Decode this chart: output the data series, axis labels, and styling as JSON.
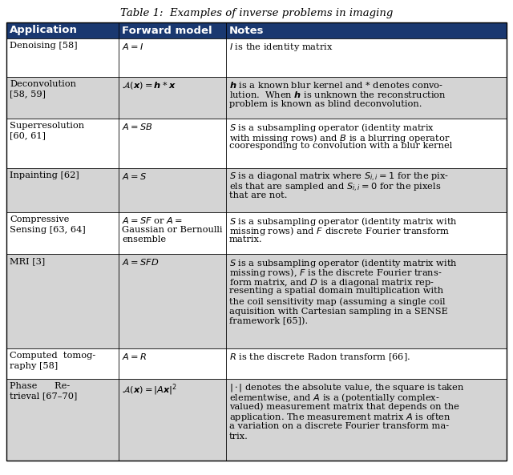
{
  "title": "Table 1:  Examples of inverse problems in imaging",
  "header": [
    "Application",
    "Forward model",
    "Notes"
  ],
  "header_bg": "#1a3870",
  "header_fg": "#ffffff",
  "rows": [
    {
      "app_lines": [
        "Denoising [58]"
      ],
      "model_lines": [
        "$A = I$"
      ],
      "notes_lines": [
        "$I$ is the identity matrix"
      ],
      "bg": "#ffffff"
    },
    {
      "app_lines": [
        "Deconvolution",
        "[58, 59]"
      ],
      "model_lines": [
        "$\\mathcal{A}(\\boldsymbol{x}) = \\boldsymbol{h} * \\boldsymbol{x}$"
      ],
      "notes_lines": [
        "$\\boldsymbol{h}$ is a known blur kernel and $*$ denotes convo-",
        "lution.  When $\\boldsymbol{h}$ is unknown the reconstruction",
        "problem is known as blind deconvolution."
      ],
      "bg": "#d4d4d4"
    },
    {
      "app_lines": [
        "Superresolution",
        "[60, 61]"
      ],
      "model_lines": [
        "$A = SB$"
      ],
      "notes_lines": [
        "$S$ is a subsampling operator (identity matrix",
        "with missing rows) and $B$ is a blurring operator",
        "cooresponding to convolution with a blur kernel"
      ],
      "bg": "#ffffff"
    },
    {
      "app_lines": [
        "Inpainting [62]"
      ],
      "model_lines": [
        "$A = S$"
      ],
      "notes_lines": [
        "$S$ is a diagonal matrix where $S_{i,i} = 1$ for the pix-",
        "els that are sampled and $S_{i,i} = 0$ for the pixels",
        "that are not."
      ],
      "bg": "#d4d4d4"
    },
    {
      "app_lines": [
        "Compressive",
        "Sensing [63, 64]"
      ],
      "model_lines": [
        "$A = SF$ or $A =$",
        "Gaussian or Bernoulli",
        "ensemble"
      ],
      "notes_lines": [
        "$S$ is a subsampling operator (identity matrix with",
        "missing rows) and $F$ discrete Fourier transform",
        "matrix."
      ],
      "bg": "#ffffff"
    },
    {
      "app_lines": [
        "MRI [3]"
      ],
      "model_lines": [
        "$A = SFD$"
      ],
      "notes_lines": [
        "$S$ is a subsampling operator (identity matrix with",
        "missing rows), $F$ is the discrete Fourier trans-",
        "form matrix, and $D$ is a diagonal matrix rep-",
        "resenting a spatial domain multiplication with",
        "the coil sensitivity map (assuming a single coil",
        "aquisition with Cartesian sampling in a SENSE",
        "framework [65])."
      ],
      "bg": "#d4d4d4"
    },
    {
      "app_lines": [
        "Computed  tomog-",
        "raphy [58]"
      ],
      "model_lines": [
        "$A = R$"
      ],
      "notes_lines": [
        "$R$ is the discrete Radon transform [66]."
      ],
      "bg": "#ffffff"
    },
    {
      "app_lines": [
        "Phase      Re-",
        "trieval [67–70]"
      ],
      "model_lines": [
        "$\\mathcal{A}(\\boldsymbol{x}) = |A\\boldsymbol{x}|^2$"
      ],
      "notes_lines": [
        "$|\\cdot|$ denotes the absolute value, the square is taken",
        "elementwise, and $A$ is a (potentially complex-",
        "valued) measurement matrix that depends on the",
        "application. The measurement matrix $A$ is often",
        "a variation on a discrete Fourier transform ma-",
        "trix."
      ],
      "bg": "#d4d4d4"
    }
  ]
}
